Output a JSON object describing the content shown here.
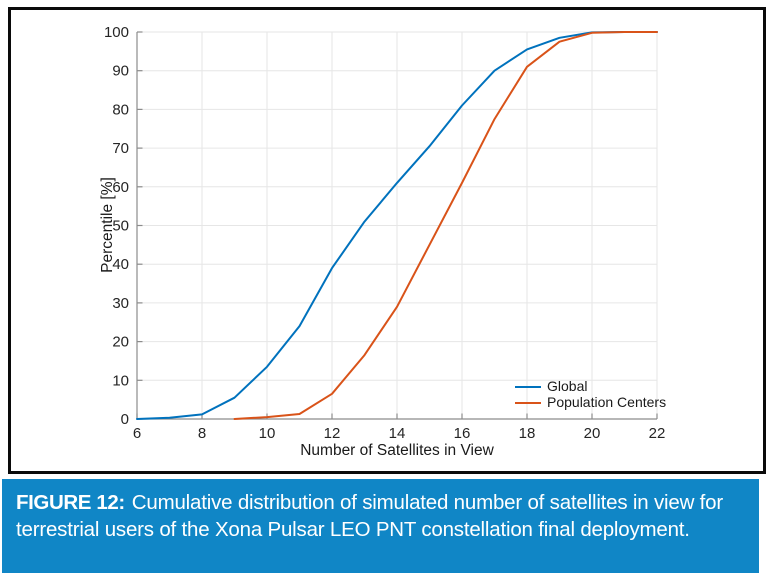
{
  "caption": {
    "label": "FIGURE 12:",
    "text": "Cumulative distribution of simulated number of satellites in view for terrestrial users of the Xona Pulsar LEO PNT constellation final deployment."
  },
  "colors": {
    "caption_background": "#1086c6",
    "panel_border": "#0a0a0a",
    "grid": "#e6e6e6",
    "axis": "#8c8c8c",
    "tick_label": "#252525"
  },
  "chart_data": {
    "type": "line",
    "title": "",
    "xlabel": "Number of Satellites in View",
    "ylabel": "Percentile [%]",
    "xlim": [
      6,
      22
    ],
    "ylim": [
      0,
      100
    ],
    "xticks": [
      6,
      8,
      10,
      12,
      14,
      16,
      18,
      20,
      22
    ],
    "yticks": [
      0,
      10,
      20,
      30,
      40,
      50,
      60,
      70,
      80,
      90,
      100
    ],
    "grid": true,
    "legend_position": "inside lower right, no box",
    "series": [
      {
        "name": "Global",
        "color": "#0072bd",
        "x": [
          6,
          7,
          8,
          9,
          10,
          11,
          12,
          13,
          14,
          15,
          16,
          17,
          18,
          19,
          20,
          21,
          22
        ],
        "y": [
          0,
          0.3,
          1.2,
          5.5,
          13.5,
          24,
          39,
          51,
          61,
          70.5,
          81,
          90,
          95.5,
          98.5,
          99.9,
          100,
          100
        ]
      },
      {
        "name": "Population Centers",
        "color": "#d95319",
        "x": [
          9,
          10,
          11,
          12,
          13,
          14,
          15,
          16,
          17,
          18,
          19,
          20,
          21,
          22
        ],
        "y": [
          0,
          0.5,
          1.3,
          6.5,
          16.5,
          29,
          45,
          61,
          77.5,
          91,
          97.5,
          99.8,
          100,
          100
        ]
      }
    ]
  }
}
